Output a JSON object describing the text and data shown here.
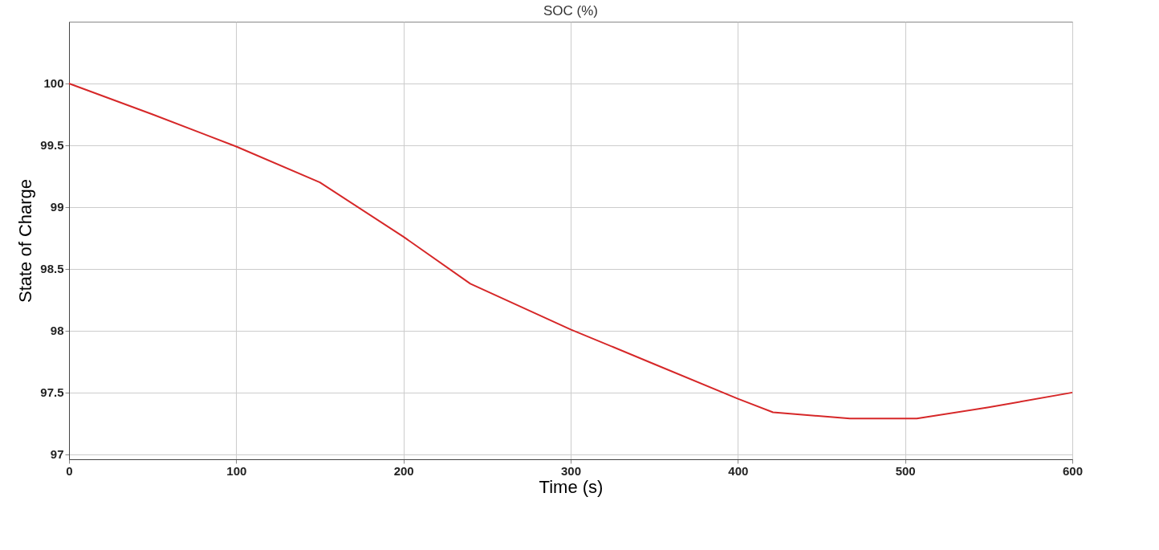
{
  "chart_data": {
    "type": "line",
    "title": "SOC (%)",
    "xlabel": "Time (s)",
    "ylabel": "State of Charge",
    "x": [
      0,
      50,
      100,
      150,
      200,
      240,
      300,
      350,
      400,
      421,
      467,
      507,
      550,
      600
    ],
    "series": [
      {
        "color": "#d62728",
        "values": [
          100,
          99.75,
          99.49,
          99.2,
          98.76,
          98.38,
          98.01,
          97.73,
          97.45,
          97.34,
          97.29,
          97.29,
          97.38,
          97.5
        ]
      }
    ],
    "xlim": [
      0,
      600
    ],
    "xticks": [
      0,
      100,
      200,
      300,
      400,
      500,
      600
    ],
    "ylim": [
      96.96,
      100.5
    ],
    "yticks": [
      97,
      97.5,
      98,
      98.5,
      99,
      99.5,
      100
    ],
    "grid": true,
    "marker": "none",
    "line_style": "solid"
  }
}
